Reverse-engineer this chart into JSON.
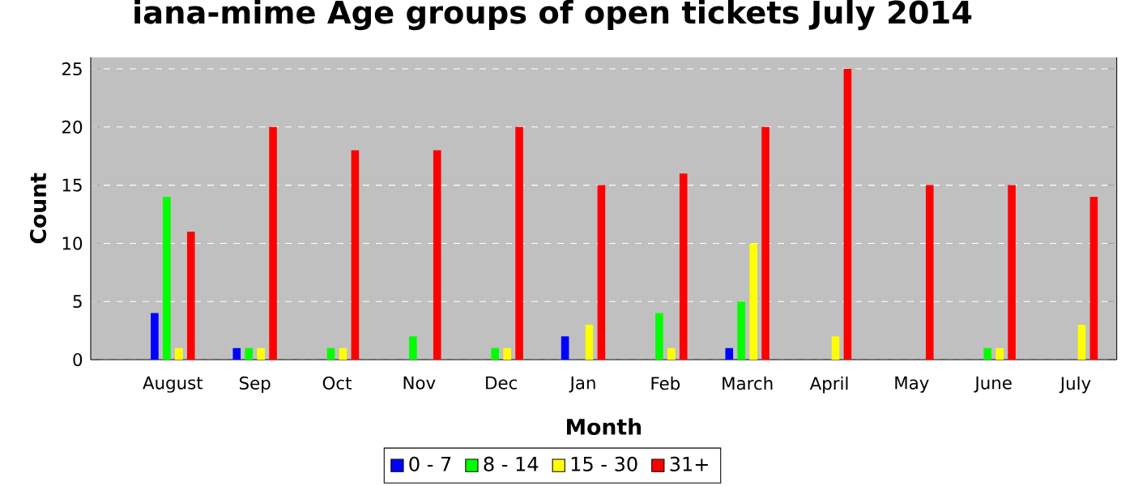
{
  "chart_data": {
    "type": "bar",
    "title": "iana-mime Age groups of open tickets July 2014",
    "xlabel": "Month",
    "ylabel": "Count",
    "categories": [
      "August",
      "Sep",
      "Oct",
      "Nov",
      "Dec",
      "Jan",
      "Feb",
      "March",
      "April",
      "May",
      "June",
      "July"
    ],
    "series": [
      {
        "name": "0 - 7",
        "color": "#0000ff",
        "values": [
          4,
          1,
          0,
          0,
          0,
          2,
          0,
          1,
          0,
          0,
          0,
          0
        ]
      },
      {
        "name": "8 - 14",
        "color": "#00ff00",
        "values": [
          14,
          1,
          1,
          2,
          1,
          0,
          4,
          5,
          0,
          0,
          1,
          0
        ]
      },
      {
        "name": "15 - 30",
        "color": "#ffff00",
        "values": [
          1,
          1,
          1,
          0,
          1,
          3,
          1,
          10,
          2,
          0,
          1,
          3
        ]
      },
      {
        "name": "31+",
        "color": "#ff0000",
        "values": [
          11,
          20,
          18,
          18,
          20,
          15,
          16,
          20,
          25,
          15,
          15,
          14
        ]
      }
    ],
    "ylim": [
      0,
      26
    ],
    "yticks": [
      0,
      5,
      10,
      15,
      20,
      25
    ],
    "grid": "y",
    "legend": "bottom"
  }
}
